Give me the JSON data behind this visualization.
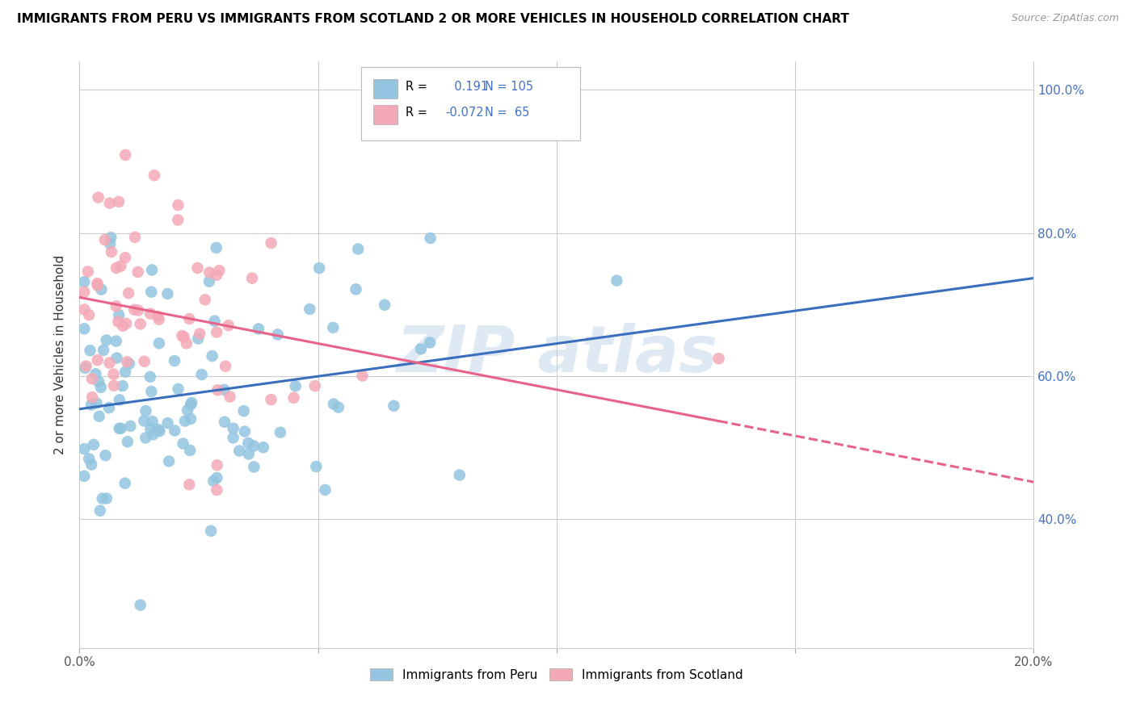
{
  "title": "IMMIGRANTS FROM PERU VS IMMIGRANTS FROM SCOTLAND 2 OR MORE VEHICLES IN HOUSEHOLD CORRELATION CHART",
  "source": "Source: ZipAtlas.com",
  "ylabel": "2 or more Vehicles in Household",
  "xlim": [
    0.0,
    0.2
  ],
  "ylim": [
    0.22,
    1.04
  ],
  "peru_color": "#93c5e0",
  "scotland_color": "#f4a9b8",
  "peru_line_color": "#3a6fbe",
  "scotland_line_color": "#e8638a",
  "R_peru": 0.191,
  "N_peru": 105,
  "R_scotland": -0.072,
  "N_scotland": 65,
  "legend_labels": [
    "Immigrants from Peru",
    "Immigrants from Scotland"
  ],
  "watermark": "ZIP atlas"
}
